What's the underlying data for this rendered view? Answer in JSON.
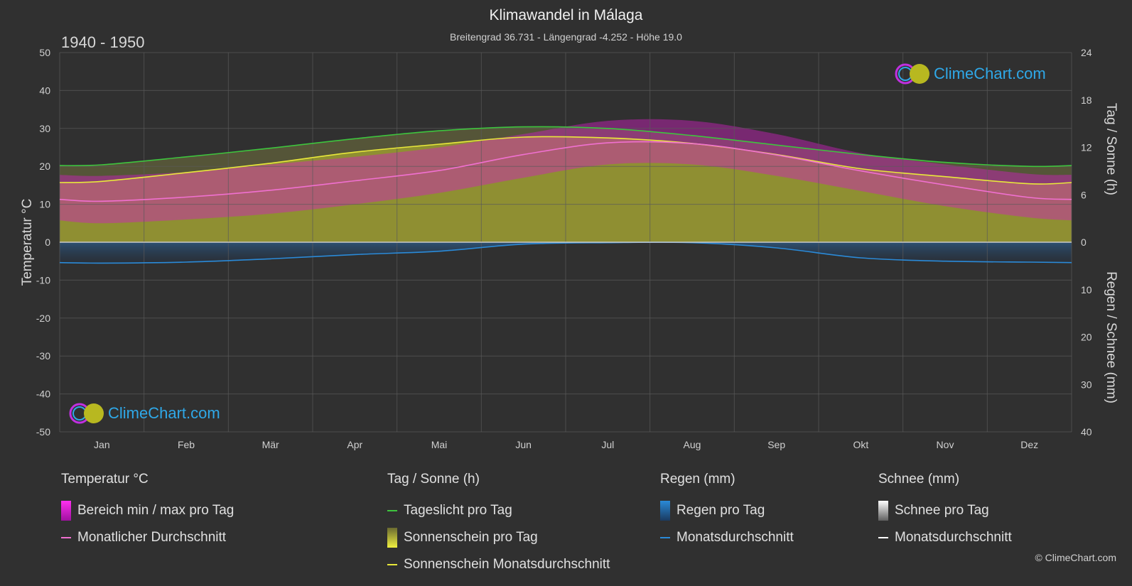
{
  "header": {
    "title": "Klimawandel in Málaga",
    "subtitle": "Breitengrad 36.731 - Längengrad -4.252 - Höhe 19.0",
    "period": "1940 - 1950"
  },
  "logo": {
    "text": "ClimeChart.com"
  },
  "copyright": "© ClimeChart.com",
  "colors": {
    "background": "#303030",
    "daylight": "#3ec43e",
    "sunshine_line": "#e8e83a",
    "sunshine_fill": "#a8a830",
    "temp_avg": "#f070d0",
    "temp_range": "#d020c0",
    "rain": "#2a8ad8",
    "snow": "#ffffff",
    "logo_text": "#2fa8e8"
  },
  "legend": {
    "groups": [
      {
        "title": "Temperatur °C",
        "items": [
          {
            "label": "Bereich min / max pro Tag",
            "swatch": "box",
            "color": "#d020c0"
          },
          {
            "label": "Monatlicher Durchschnitt",
            "swatch": "line",
            "color": "#f070d0"
          }
        ]
      },
      {
        "title": "Tag / Sonne (h)",
        "items": [
          {
            "label": "Tageslicht pro Tag",
            "swatch": "line",
            "color": "#3ec43e"
          },
          {
            "label": "Sonnenschein pro Tag",
            "swatch": "box",
            "color": "#d8d830"
          },
          {
            "label": "Sonnenschein Monatsdurchschnitt",
            "swatch": "line",
            "color": "#e8e83a"
          }
        ]
      },
      {
        "title": "Regen (mm)",
        "items": [
          {
            "label": "Regen pro Tag",
            "swatch": "box",
            "color": "#2a8ad8"
          },
          {
            "label": "Monatsdurchschnitt",
            "swatch": "line",
            "color": "#2a8ad8"
          }
        ]
      },
      {
        "title": "Schnee (mm)",
        "items": [
          {
            "label": "Schnee pro Tag",
            "swatch": "box",
            "color": "#e0e0e0"
          },
          {
            "label": "Monatsdurchschnitt",
            "swatch": "line",
            "color": "#ffffff"
          }
        ]
      }
    ]
  },
  "chart_data": {
    "type": "area",
    "categories": [
      "Jan",
      "Feb",
      "Mär",
      "Apr",
      "Mai",
      "Jun",
      "Jul",
      "Aug",
      "Sep",
      "Okt",
      "Nov",
      "Dez"
    ],
    "y_left": {
      "label": "Temperatur °C",
      "range": [
        -50,
        50
      ],
      "ticks": [
        50,
        40,
        30,
        20,
        10,
        0,
        -10,
        -20,
        -30,
        -40,
        -50
      ]
    },
    "y_right_top": {
      "label": "Tag / Sonne (h)",
      "range": [
        0,
        24
      ],
      "ticks": [
        24,
        18,
        12,
        6,
        0
      ]
    },
    "y_right_bottom": {
      "label": "Regen / Schnee (mm)",
      "range": [
        0,
        40
      ],
      "ticks": [
        10,
        20,
        30,
        40
      ]
    },
    "grid": true,
    "series": [
      {
        "name": "Tageslicht pro Tag",
        "axis": "hours",
        "values": [
          9.8,
          10.8,
          11.9,
          13.1,
          14.1,
          14.6,
          14.4,
          13.5,
          12.3,
          11.1,
          10.1,
          9.6
        ]
      },
      {
        "name": "Sonnenschein Monatsdurchschnitt",
        "axis": "hours",
        "values": [
          7.7,
          8.8,
          10.0,
          11.4,
          12.4,
          13.3,
          13.2,
          12.5,
          11.1,
          9.3,
          8.3,
          7.4
        ]
      },
      {
        "name": "Monatlicher Durchschnitt",
        "axis": "temp",
        "values": [
          10.8,
          11.9,
          13.7,
          16.2,
          18.9,
          23.1,
          26.2,
          26.0,
          23.0,
          18.8,
          15.1,
          11.8
        ]
      },
      {
        "name": "Bereich max",
        "axis": "temp",
        "values": [
          17.5,
          18.5,
          20.5,
          22.5,
          25.0,
          28.5,
          32.0,
          32.0,
          28.5,
          23.5,
          20.5,
          18.0
        ]
      },
      {
        "name": "Bereich min",
        "axis": "temp",
        "values": [
          5.0,
          6.0,
          7.5,
          10.0,
          13.0,
          17.0,
          20.5,
          20.5,
          17.5,
          13.5,
          9.5,
          6.5
        ]
      },
      {
        "name": "Regen Monatsdurchschnitt",
        "axis": "rain",
        "values": [
          4.4,
          4.2,
          3.5,
          2.6,
          1.9,
          0.4,
          0.1,
          0.1,
          1.2,
          3.3,
          4.0,
          4.2
        ]
      },
      {
        "name": "Schnee Monatsdurchschnitt",
        "axis": "rain",
        "values": [
          0,
          0,
          0,
          0,
          0,
          0,
          0,
          0,
          0,
          0,
          0,
          0
        ]
      }
    ]
  }
}
